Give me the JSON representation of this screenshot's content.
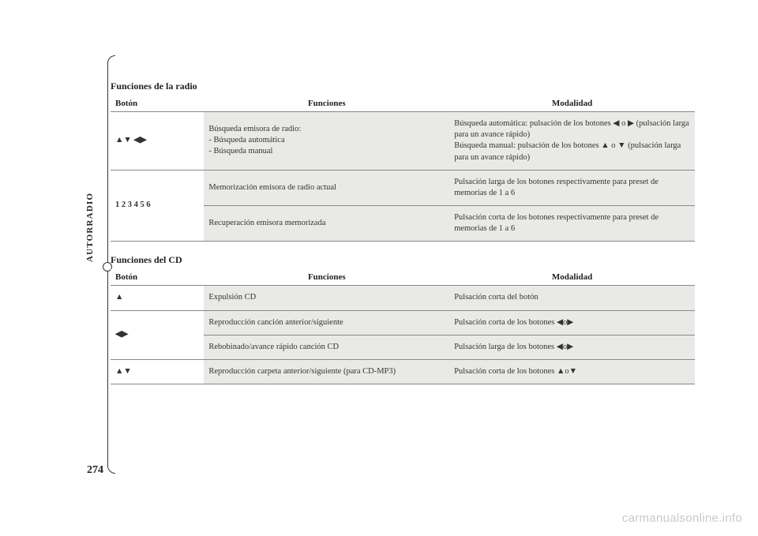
{
  "sidebar": {
    "label": "AUTORRADIO",
    "page_number": "274"
  },
  "radio": {
    "title": "Funciones de la radio",
    "columns": [
      "Botón",
      "Funciones",
      "Modalidad"
    ],
    "rows": [
      {
        "boton_glyphs": "▲▼ ◀▶",
        "funcion": "Búsqueda emisora de radio:\n- Búsqueda automática\n- Búsqueda manual",
        "modalidad": "Búsqueda automática: pulsación de los botones ◀ o ▶ (pulsación larga para un avance rápido)\nBúsqueda manual: pulsación de los botones ▲ o ▼ (pulsación larga para un avance rápido)",
        "rowspan_boton": 1
      },
      {
        "boton_glyphs": "1 2 3 4 5 6",
        "funcion": "Memorización emisora de radio actual",
        "modalidad": "Pulsación larga de los botones respectivamente para preset de memorias de 1 a 6",
        "rowspan_boton": 2
      },
      {
        "funcion": "Recuperación emisora memorizada",
        "modalidad": "Pulsación corta de los botones respectivamente para preset de memorias de 1 a 6"
      }
    ]
  },
  "cd": {
    "title": "Funciones del CD",
    "columns": [
      "Botón",
      "Funciones",
      "Modalidad"
    ],
    "rows": [
      {
        "boton_glyphs": "▲",
        "funcion": "Expulsión CD",
        "modalidad": "Pulsación corta del botón",
        "rowspan_boton": 1
      },
      {
        "boton_glyphs": "◀▶",
        "funcion": "Reproducción canción anterior/siguiente",
        "modalidad": "Pulsación corta de los botones ◀o▶",
        "rowspan_boton": 2
      },
      {
        "funcion": "Rebobinado/avance rápido canción CD",
        "modalidad": "Pulsación larga de los botones ◀o▶"
      },
      {
        "boton_glyphs": "▲▼",
        "funcion": "Reproducción carpeta anterior/siguiente (para CD-MP3)",
        "modalidad": "Pulsación corta de los botones ▲o▼",
        "rowspan_boton": 1
      }
    ]
  },
  "watermark": "carmanualsonline.info"
}
